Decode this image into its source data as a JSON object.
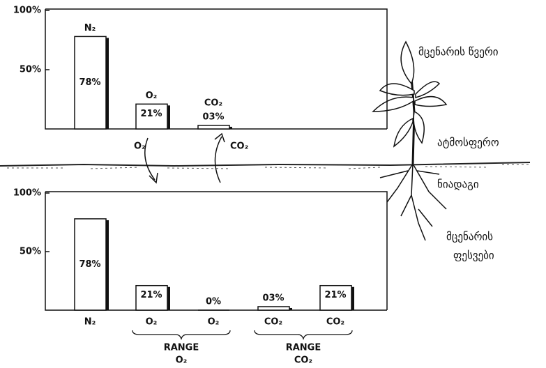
{
  "chart_data": [
    {
      "type": "bar",
      "categories": [
        "N₂",
        "O₂",
        "CO₂"
      ],
      "values": [
        78,
        21,
        3
      ],
      "value_labels": [
        "78%",
        "21%",
        "03%"
      ],
      "ylim": [
        0,
        100
      ],
      "yticks": [
        {
          "value": 50,
          "label": "50%"
        },
        {
          "value": 100,
          "label": "100%"
        }
      ],
      "color": "#ffffff"
    },
    {
      "type": "bar",
      "categories": [
        "N₂",
        "O₂",
        "O₂",
        "CO₂",
        "CO₂"
      ],
      "values": [
        78,
        21,
        0,
        3,
        21
      ],
      "value_labels": [
        "78%",
        "21%",
        "0%",
        "03%",
        "21%"
      ],
      "ylim": [
        0,
        100
      ],
      "yticks": [
        {
          "value": 50,
          "label": "50%"
        },
        {
          "value": 100,
          "label": "100%"
        }
      ],
      "color": "#ffffff"
    }
  ],
  "arrows": [
    "O₂",
    "CO₂"
  ],
  "ranges": [
    {
      "title": "RANGE",
      "gas": "O₂"
    },
    {
      "title": "RANGE",
      "gas": "CO₂"
    }
  ],
  "side_labels": [
    "მცენარის წვერი",
    "ატმოსფერო",
    "ნიადაგი",
    "მცენარის",
    "ფესვები"
  ]
}
